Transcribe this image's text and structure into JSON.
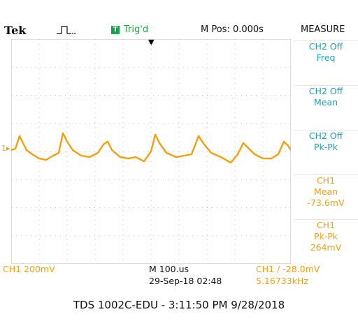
{
  "colors": {
    "ch1": "#f59e0b",
    "ch2": "#19a3b8",
    "trig": "#16a34a",
    "grid": "#bdbdbd"
  },
  "topbar": {
    "brand": "Tek",
    "trigger_icon": "pulse-icon",
    "trig_badge": "T",
    "trig_status": "Trig'd",
    "m_pos": "M Pos: 0.000s",
    "measure_title": "MEASURE"
  },
  "measure": [
    {
      "line1": "CH2 Off",
      "line2": "Freq",
      "line3": ""
    },
    {
      "line1": "CH2 Off",
      "line2": "Mean",
      "line3": ""
    },
    {
      "line1": "CH2 Off",
      "line2": "Pk-Pk",
      "line3": ""
    },
    {
      "line1": "CH1",
      "line2": "Mean",
      "line3": "-73.6mV"
    },
    {
      "line1": "CH1",
      "line2": "Pk-Pk",
      "line3": "264mV"
    }
  ],
  "bottom": {
    "ch1_scale": "CH1  200mV",
    "timebase": "M 100.us",
    "datetime": "29-Sep-18 02:48",
    "trig_level": "CH1  ∕  -28.0mV",
    "freq": "5.16733kHz"
  },
  "ch1_marker": "1▸",
  "caption": "TDS 1002C-EDU - 3:11:50 PM   9/28/2018",
  "waveform": {
    "name": "CH1",
    "x_divisions": 10,
    "y_divisions": 8,
    "samples_div": [
      [
        0.0,
        0.05
      ],
      [
        0.15,
        0.1
      ],
      [
        0.3,
        0.55
      ],
      [
        0.42,
        0.3
      ],
      [
        0.55,
        0.05
      ],
      [
        0.75,
        -0.1
      ],
      [
        1.0,
        -0.25
      ],
      [
        1.25,
        -0.3
      ],
      [
        1.5,
        -0.15
      ],
      [
        1.7,
        -0.05
      ],
      [
        1.85,
        0.65
      ],
      [
        2.0,
        0.35
      ],
      [
        2.2,
        0.05
      ],
      [
        2.5,
        -0.15
      ],
      [
        2.8,
        -0.2
      ],
      [
        3.1,
        -0.05
      ],
      [
        3.3,
        0.25
      ],
      [
        3.45,
        0.35
      ],
      [
        3.6,
        0.05
      ],
      [
        3.9,
        -0.2
      ],
      [
        4.2,
        -0.25
      ],
      [
        4.45,
        -0.2
      ],
      [
        4.75,
        -0.35
      ],
      [
        5.0,
        0.0
      ],
      [
        5.15,
        0.6
      ],
      [
        5.3,
        0.3
      ],
      [
        5.55,
        -0.05
      ],
      [
        5.9,
        -0.2
      ],
      [
        6.2,
        -0.15
      ],
      [
        6.45,
        -0.1
      ],
      [
        6.7,
        0.55
      ],
      [
        6.9,
        0.25
      ],
      [
        7.15,
        -0.05
      ],
      [
        7.5,
        -0.2
      ],
      [
        7.85,
        -0.4
      ],
      [
        8.1,
        -0.1
      ],
      [
        8.3,
        0.3
      ],
      [
        8.5,
        0.1
      ],
      [
        8.7,
        -0.1
      ],
      [
        9.0,
        -0.25
      ],
      [
        9.3,
        -0.25
      ],
      [
        9.55,
        -0.1
      ],
      [
        9.75,
        0.35
      ],
      [
        9.9,
        0.2
      ],
      [
        10.0,
        0.05
      ]
    ]
  }
}
